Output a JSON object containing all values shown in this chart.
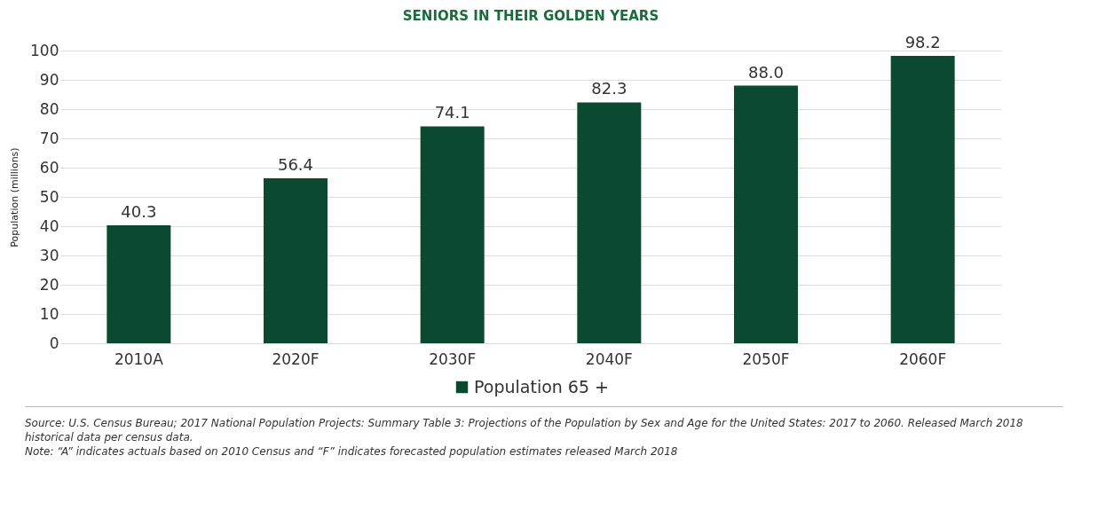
{
  "chart_data": {
    "type": "bar",
    "title": "SENIORS IN THEIR GOLDEN YEARS",
    "ylabel": "Population (millions)",
    "categories": [
      "2010A",
      "2020F",
      "2030F",
      "2040F",
      "2050F",
      "2060F"
    ],
    "series": [
      {
        "name": "Population 65 +",
        "color": "#0b4a31",
        "values": [
          40.3,
          56.4,
          74.1,
          82.3,
          88.0,
          98.2
        ]
      }
    ],
    "value_labels": [
      "40.3",
      "56.4",
      "74.1",
      "82.3",
      "88.0",
      "98.2"
    ],
    "ylim": [
      0,
      100
    ],
    "yticks": [
      0,
      10,
      20,
      30,
      40,
      50,
      60,
      70,
      80,
      90,
      100
    ],
    "grid": "y",
    "legend": "bottom",
    "annotations": [
      "Source: U.S. Census Bureau; 2017 National Population Projects: Summary Table 3: Projections of the Population by Sex and Age for the United States: 2017 to 2060. Released March 2018 historical data per census data.",
      "Note: “A” indicates actuals based on 2010 Census and “F” indicates forecasted population estimates released March 2018"
    ]
  }
}
